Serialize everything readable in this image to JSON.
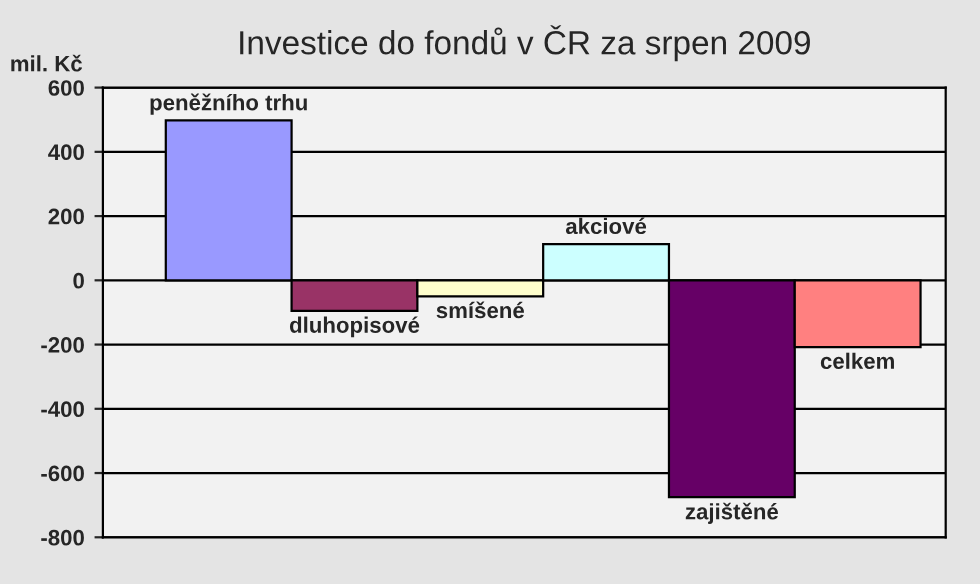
{
  "chart_data": {
    "type": "bar",
    "title": "Investice do fondů v ČR za srpen 2009",
    "ylabel": "mil. Kč",
    "categories": [
      "peněžního trhu",
      "dluhopisové",
      "smíšené",
      "akciové",
      "zajištěné",
      "celkem"
    ],
    "values": [
      498,
      -95,
      -50,
      113,
      -675,
      -208
    ],
    "colors": [
      "#9999ff",
      "#993366",
      "#ffffcc",
      "#ccffff",
      "#660066",
      "#ff8080"
    ],
    "ylim": [
      -800,
      600
    ],
    "yticks": [
      -800,
      -600,
      -400,
      -200,
      0,
      200,
      400,
      600
    ],
    "grid": "y",
    "legend": false
  }
}
